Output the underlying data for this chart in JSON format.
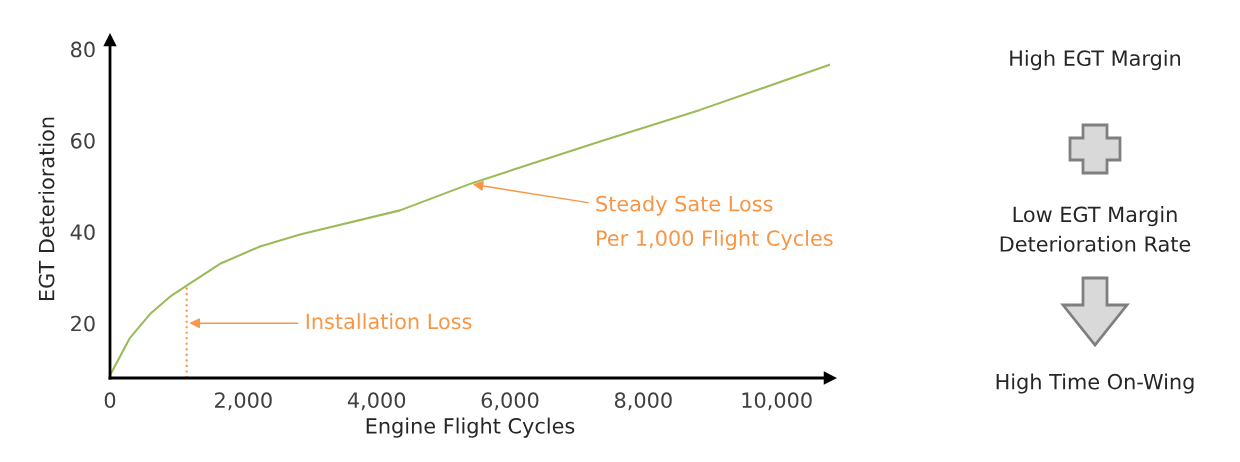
{
  "chart_data": {
    "type": "line",
    "xlabel": "Engine Flight Cycles",
    "ylabel": "EGT Deterioration",
    "x": [
      0,
      300,
      600,
      900,
      1150,
      1650,
      2250,
      2850,
      4350,
      5400,
      7350,
      8850,
      10800
    ],
    "series": [
      {
        "color": "#9bbb59",
        "values": [
          8.6,
          16.8,
          22,
          25.8,
          28.2,
          33,
          36.8,
          39.4,
          44.7,
          50.5,
          59.8,
          66.7,
          76.6
        ]
      }
    ],
    "xlim": [
      0,
      10800
    ],
    "xticks": [
      0,
      {
        "value": 2000,
        "label": "2,000"
      },
      {
        "value": 4000,
        "label": "4,000"
      },
      {
        "value": 6000,
        "label": "6,000"
      },
      {
        "value": 8000,
        "label": "8,000"
      },
      {
        "value": 10000,
        "label": "10,000"
      }
    ],
    "ylim": [
      8,
      82
    ],
    "yticks": [
      20,
      40,
      60,
      80
    ],
    "ref_lines": [
      {
        "axis": "x",
        "value": 1150,
        "color": "#f79646",
        "line_style": "dotted"
      }
    ],
    "annotations": [
      {
        "text": "Installation Loss",
        "x": 1150,
        "y": 20
      },
      {
        "text": "Steady Sate Loss\nPer 1,000 Flight Cycles",
        "x": 5400,
        "y": 50.5
      },
      "High EGT Margin",
      "Low EGT Margin\nDeterioration Rate",
      "High Time On-Wing"
    ],
    "grid": false,
    "legend": false,
    "marker": "none",
    "line_style": "solid"
  }
}
